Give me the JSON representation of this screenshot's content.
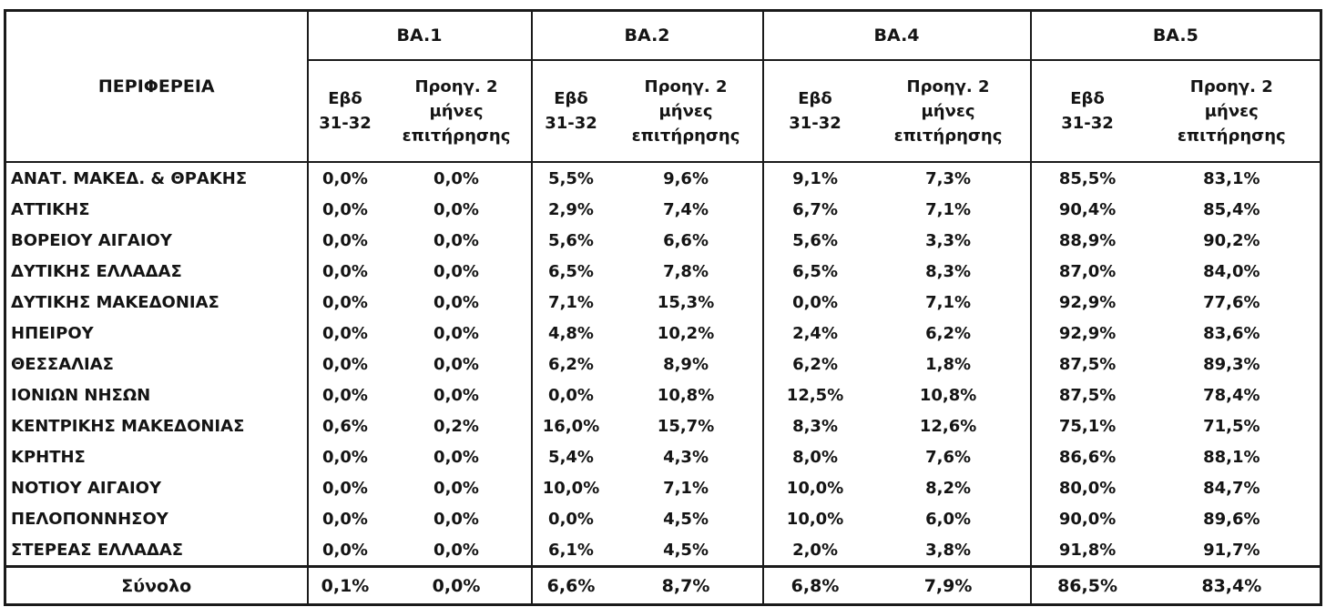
{
  "table": {
    "region_header": "ΠΕΡΙΦΕΡΕΙΑ",
    "groups": [
      "BA.1",
      "BA.2",
      "BA.4",
      "BA.5"
    ],
    "sub_col_1": [
      "Εβδ",
      "31-32"
    ],
    "sub_col_2": [
      "Προηγ. 2",
      "μήνες",
      "επιτήρησης"
    ],
    "rows": [
      {
        "region": "ΑΝΑΤ. ΜΑΚΕΔ. & ΘΡΑΚΗΣ",
        "values": [
          "0,0%",
          "0,0%",
          "5,5%",
          "9,6%",
          "9,1%",
          "7,3%",
          "85,5%",
          "83,1%"
        ]
      },
      {
        "region": "ΑΤΤΙΚΗΣ",
        "values": [
          "0,0%",
          "0,0%",
          "2,9%",
          "7,4%",
          "6,7%",
          "7,1%",
          "90,4%",
          "85,4%"
        ]
      },
      {
        "region": "ΒΟΡΕΙΟΥ ΑΙΓΑΙΟΥ",
        "values": [
          "0,0%",
          "0,0%",
          "5,6%",
          "6,6%",
          "5,6%",
          "3,3%",
          "88,9%",
          "90,2%"
        ]
      },
      {
        "region": "ΔΥΤΙΚΗΣ ΕΛΛΑΔΑΣ",
        "values": [
          "0,0%",
          "0,0%",
          "6,5%",
          "7,8%",
          "6,5%",
          "8,3%",
          "87,0%",
          "84,0%"
        ]
      },
      {
        "region": "ΔΥΤΙΚΗΣ ΜΑΚΕΔΟΝΙΑΣ",
        "values": [
          "0,0%",
          "0,0%",
          "7,1%",
          "15,3%",
          "0,0%",
          "7,1%",
          "92,9%",
          "77,6%"
        ]
      },
      {
        "region": "ΗΠΕΙΡΟΥ",
        "values": [
          "0,0%",
          "0,0%",
          "4,8%",
          "10,2%",
          "2,4%",
          "6,2%",
          "92,9%",
          "83,6%"
        ]
      },
      {
        "region": "ΘΕΣΣΑΛΙΑΣ",
        "values": [
          "0,0%",
          "0,0%",
          "6,2%",
          "8,9%",
          "6,2%",
          "1,8%",
          "87,5%",
          "89,3%"
        ]
      },
      {
        "region": "ΙΟΝΙΩΝ ΝΗΣΩΝ",
        "values": [
          "0,0%",
          "0,0%",
          "0,0%",
          "10,8%",
          "12,5%",
          "10,8%",
          "87,5%",
          "78,4%"
        ]
      },
      {
        "region": "ΚΕΝΤΡΙΚΗΣ ΜΑΚΕΔΟΝΙΑΣ",
        "values": [
          "0,6%",
          "0,2%",
          "16,0%",
          "15,7%",
          "8,3%",
          "12,6%",
          "75,1%",
          "71,5%"
        ]
      },
      {
        "region": "ΚΡΗΤΗΣ",
        "values": [
          "0,0%",
          "0,0%",
          "5,4%",
          "4,3%",
          "8,0%",
          "7,6%",
          "86,6%",
          "88,1%"
        ]
      },
      {
        "region": "ΝΟΤΙΟΥ ΑΙΓΑΙΟΥ",
        "values": [
          "0,0%",
          "0,0%",
          "10,0%",
          "7,1%",
          "10,0%",
          "8,2%",
          "80,0%",
          "84,7%"
        ]
      },
      {
        "region": "ΠΕΛΟΠΟΝΝΗΣΟΥ",
        "values": [
          "0,0%",
          "0,0%",
          "0,0%",
          "4,5%",
          "10,0%",
          "6,0%",
          "90,0%",
          "89,6%"
        ]
      },
      {
        "region": "ΣΤΕΡΕΑΣ ΕΛΛΑΔΑΣ",
        "values": [
          "0,0%",
          "0,0%",
          "6,1%",
          "4,5%",
          "2,0%",
          "3,8%",
          "91,8%",
          "91,7%"
        ]
      }
    ],
    "total": {
      "label": "Σύνολο",
      "values": [
        "0,1%",
        "0,0%",
        "6,6%",
        "8,7%",
        "6,8%",
        "7,9%",
        "86,5%",
        "83,4%"
      ]
    }
  }
}
